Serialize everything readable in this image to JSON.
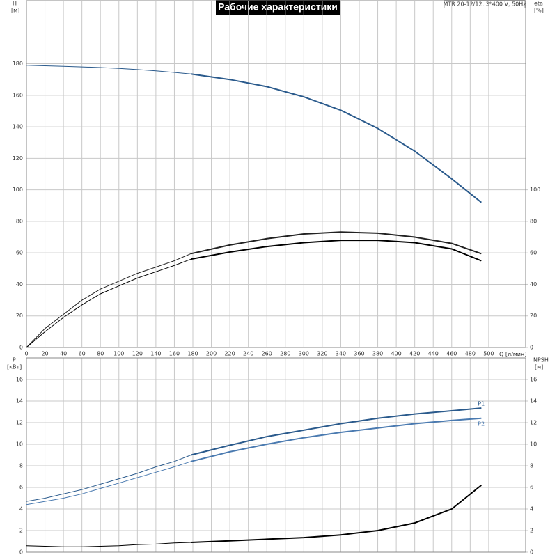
{
  "chart_data": [
    {
      "type": "line",
      "title": "Рабочие характеристики",
      "model": "MTR 20-12/12, 3*400 V, 50Hz",
      "ylabel": "H",
      "yunit": "[м]",
      "y2label": "eta",
      "y2unit": "[%]",
      "xlabel": "Q [л/мин]",
      "xlim": [
        0,
        540
      ],
      "xticks": [
        0,
        20,
        40,
        60,
        80,
        100,
        120,
        140,
        160,
        180,
        200,
        220,
        240,
        260,
        280,
        300,
        320,
        340,
        360,
        380,
        400,
        420,
        440,
        460,
        480,
        500
      ],
      "ylim": [
        0,
        220
      ],
      "yticks": [
        0,
        20,
        40,
        60,
        80,
        100,
        120,
        140,
        160,
        180
      ],
      "y2lim": [
        0,
        220
      ],
      "y2ticks": [
        0,
        20,
        40,
        60,
        80,
        100
      ],
      "grid": true,
      "show_xtick_labels": true,
      "thick_from": 178,
      "x": [
        0,
        20,
        40,
        60,
        80,
        100,
        120,
        140,
        160,
        178,
        220,
        260,
        300,
        340,
        380,
        420,
        460,
        492
      ],
      "series": [
        {
          "color": "#2a5a8c",
          "values": [
            179,
            178.7,
            178.4,
            178,
            177.6,
            177,
            176.3,
            175.5,
            174.5,
            173.5,
            170,
            165.5,
            159,
            150.5,
            139,
            124.5,
            107,
            92
          ]
        },
        {
          "color": "#222222",
          "axis": "y2",
          "values": [
            0,
            12,
            21,
            30,
            37,
            42,
            47,
            51,
            55,
            59.5,
            65,
            69,
            72,
            73.2,
            72.5,
            70,
            66,
            59.5
          ]
        },
        {
          "color": "#000000",
          "axis": "y2",
          "values": [
            0,
            10,
            19,
            27,
            34,
            39,
            44,
            48,
            52,
            56,
            60.5,
            64,
            66.5,
            68,
            68,
            66.5,
            62.5,
            55
          ]
        }
      ]
    },
    {
      "type": "line",
      "ylabel": "P",
      "yunit": "[кВт]",
      "y2label": "NPSH",
      "y2unit": "[м]",
      "xlim": [
        0,
        540
      ],
      "xticks": [
        0,
        20,
        40,
        60,
        80,
        100,
        120,
        140,
        160,
        180,
        200,
        220,
        240,
        260,
        280,
        300,
        320,
        340,
        360,
        380,
        400,
        420,
        440,
        460,
        480,
        500
      ],
      "ylim": [
        0,
        18
      ],
      "yticks": [
        0,
        2,
        4,
        6,
        8,
        10,
        12,
        14,
        16
      ],
      "y2lim": [
        0,
        18
      ],
      "y2ticks": [
        0,
        2,
        4,
        6,
        8,
        10,
        12,
        14,
        16
      ],
      "grid": true,
      "show_xtick_labels": false,
      "thick_from": 178,
      "x": [
        0,
        20,
        40,
        60,
        80,
        100,
        120,
        140,
        160,
        178,
        220,
        260,
        300,
        340,
        380,
        420,
        460,
        492
      ],
      "series": [
        {
          "name": "P1",
          "color": "#2a5a8c",
          "values": [
            4.7,
            5.0,
            5.4,
            5.8,
            6.3,
            6.8,
            7.3,
            7.9,
            8.4,
            9.0,
            9.9,
            10.7,
            11.3,
            11.9,
            12.4,
            12.8,
            13.1,
            13.35
          ]
        },
        {
          "name": "P2",
          "color": "#4a7ab0",
          "values": [
            4.4,
            4.7,
            5.0,
            5.4,
            5.9,
            6.4,
            6.9,
            7.4,
            7.9,
            8.4,
            9.3,
            10.0,
            10.6,
            11.1,
            11.5,
            11.9,
            12.2,
            12.4
          ]
        },
        {
          "color": "#000000",
          "axis": "y2",
          "values": [
            0.6,
            0.55,
            0.5,
            0.5,
            0.55,
            0.6,
            0.7,
            0.75,
            0.85,
            0.9,
            1.05,
            1.2,
            1.35,
            1.6,
            2.0,
            2.7,
            4.0,
            6.2
          ]
        }
      ]
    }
  ]
}
